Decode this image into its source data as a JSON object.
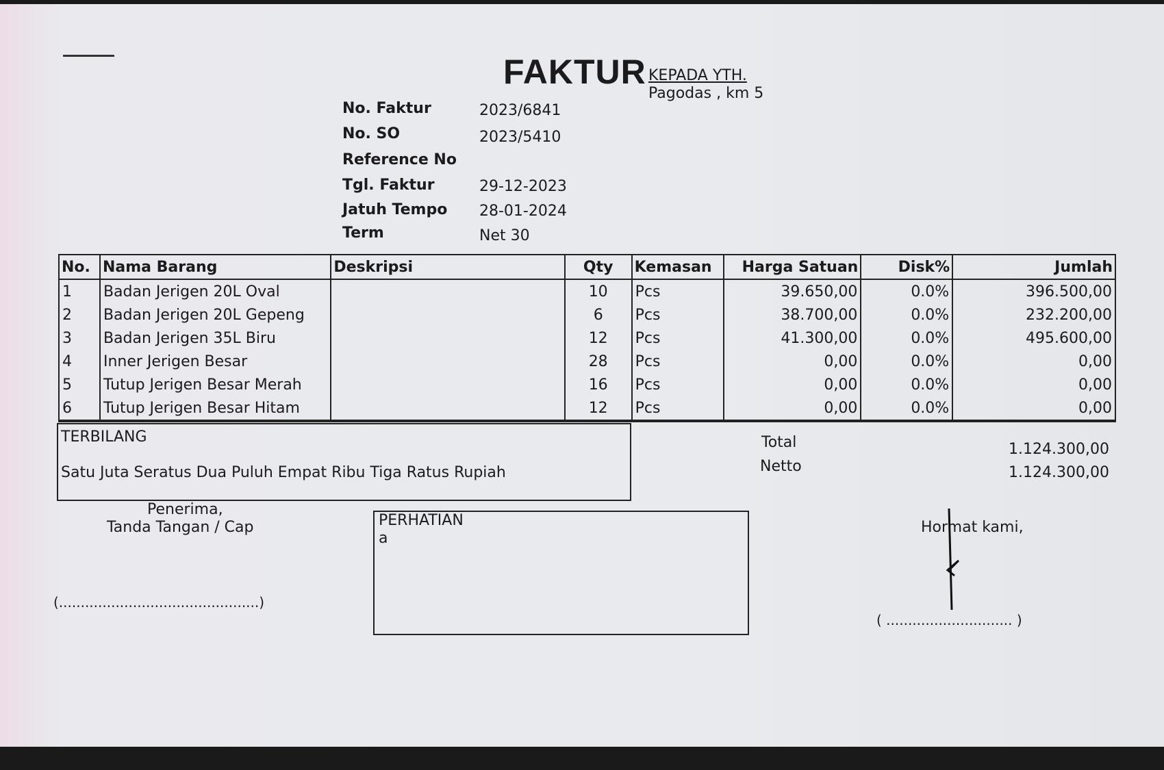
{
  "header": {
    "title": "FAKTUR",
    "recipient_label": "KEPADA YTH.",
    "recipient_address": "Pagodas , km 5"
  },
  "info": [
    {
      "label": "No. Faktur",
      "value": "2023/6841"
    },
    {
      "label": "No. SO",
      "value": "2023/5410"
    },
    {
      "label": "Reference No",
      "value": ""
    },
    {
      "label": "Tgl. Faktur",
      "value": "29-12-2023"
    },
    {
      "label": "Jatuh Tempo",
      "value": "28-01-2024"
    },
    {
      "label": "Term",
      "value": "Net 30"
    }
  ],
  "table": {
    "columns": [
      "No.",
      "Nama Barang",
      "Deskripsi",
      "Qty",
      "Kemasan",
      "Harga Satuan",
      "Disk%",
      "Jumlah"
    ],
    "rows": [
      {
        "no": "1",
        "nama": "Badan Jerigen 20L Oval",
        "deskripsi": "",
        "qty": "10",
        "kemasan": "Pcs",
        "harga": "39.650,00",
        "disk": "0.0%",
        "jumlah": "396.500,00"
      },
      {
        "no": "2",
        "nama": "Badan Jerigen 20L Gepeng",
        "deskripsi": "",
        "qty": "6",
        "kemasan": "Pcs",
        "harga": "38.700,00",
        "disk": "0.0%",
        "jumlah": "232.200,00"
      },
      {
        "no": "3",
        "nama": "Badan Jerigen 35L Biru",
        "deskripsi": "",
        "qty": "12",
        "kemasan": "Pcs",
        "harga": "41.300,00",
        "disk": "0.0%",
        "jumlah": "495.600,00"
      },
      {
        "no": "4",
        "nama": "Inner Jerigen Besar",
        "deskripsi": "",
        "qty": "28",
        "kemasan": "Pcs",
        "harga": "0,00",
        "disk": "0.0%",
        "jumlah": "0,00"
      },
      {
        "no": "5",
        "nama": "Tutup Jerigen Besar Merah",
        "deskripsi": "",
        "qty": "16",
        "kemasan": "Pcs",
        "harga": "0,00",
        "disk": "0.0%",
        "jumlah": "0,00"
      },
      {
        "no": "6",
        "nama": "Tutup Jerigen Besar Hitam",
        "deskripsi": "",
        "qty": "12",
        "kemasan": "Pcs",
        "harga": "0,00",
        "disk": "0.0%",
        "jumlah": "0,00"
      }
    ]
  },
  "terbilang": {
    "label": "TERBILANG",
    "text": "Satu Juta Seratus Dua Puluh Empat Ribu Tiga Ratus Rupiah"
  },
  "totals": {
    "total_label": "Total",
    "total_value": "1.124.300,00",
    "netto_label": "Netto",
    "netto_value": "1.124.300,00"
  },
  "receiver": {
    "line1": "Penerima,",
    "line2": "Tanda Tangan / Cap",
    "sign_line": "(..............................................)"
  },
  "notes": {
    "label": "PERHATIAN",
    "text": "a"
  },
  "sender": {
    "label": "Hormat kami,",
    "sign_line": "( ............................. )"
  }
}
